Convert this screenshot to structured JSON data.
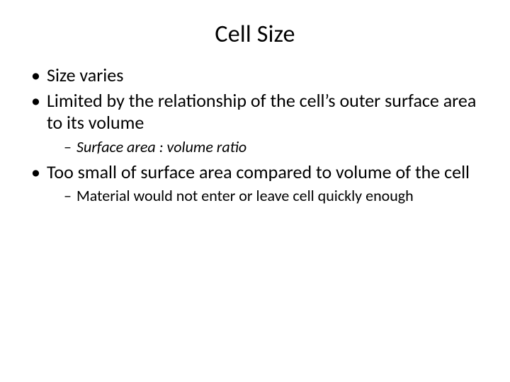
{
  "slide": {
    "title": "Cell Size",
    "title_fontsize": 34,
    "background_color": "#ffffff",
    "text_color": "#000000",
    "bullets": [
      {
        "text": "Size varies",
        "sub": []
      },
      {
        "text": "Limited by the relationship of the cell’s outer surface area to its volume",
        "sub": [
          {
            "text": "Surface area : volume ratio",
            "italic": true
          }
        ]
      },
      {
        "text": "Too small of surface area compared to volume of the cell",
        "sub": [
          {
            "text": "Material would not enter or leave cell quickly enough",
            "italic": false
          }
        ]
      }
    ],
    "level1_fontsize": 26,
    "level2_fontsize": 22
  }
}
